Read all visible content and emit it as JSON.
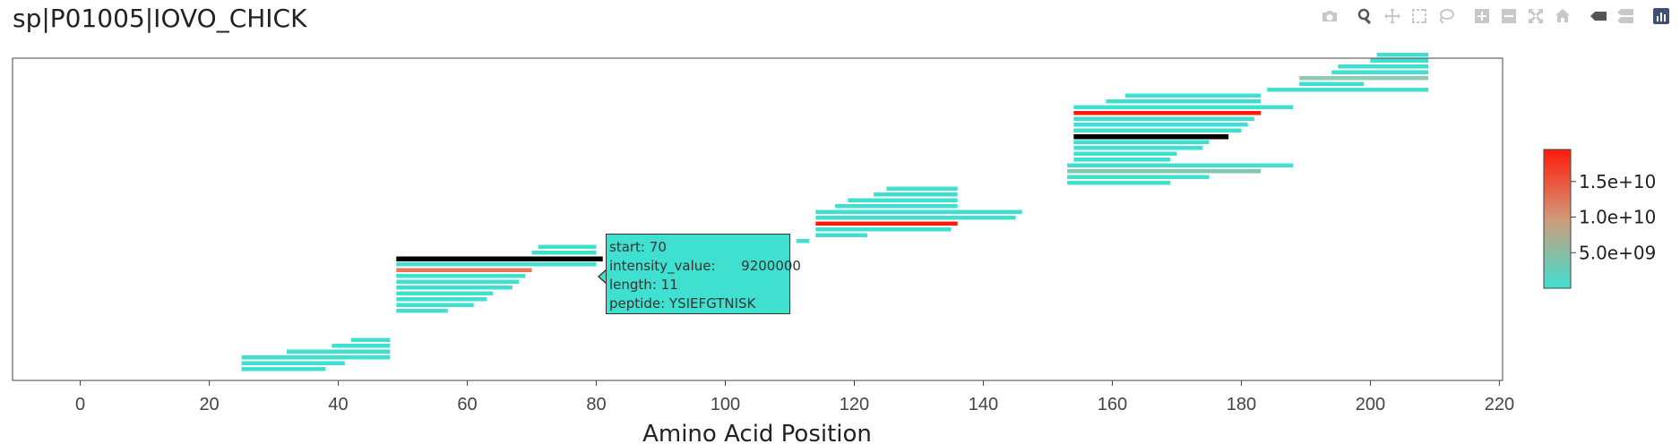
{
  "page": {
    "title": "sp|P01005|IOVO_CHICK"
  },
  "modebar": [
    {
      "name": "camera-icon"
    },
    {
      "name": "zoom-icon"
    },
    {
      "name": "pan-icon"
    },
    {
      "name": "box-select-icon"
    },
    {
      "name": "lasso-icon"
    },
    {
      "name": "zoom-in-icon"
    },
    {
      "name": "zoom-out-icon"
    },
    {
      "name": "autoscale-icon"
    },
    {
      "name": "reset-axes-icon"
    },
    {
      "name": "hover-closest-icon"
    },
    {
      "name": "hover-compare-icon"
    },
    {
      "name": "plotly-logo-icon"
    }
  ],
  "tooltip": {
    "start_label": "start:",
    "start_value": "70",
    "intensity_label": "intensity_value:",
    "intensity_value": "9200000",
    "length_label": "length:",
    "length_value": "11",
    "peptide_label": "peptide:",
    "peptide_value": "YSIEFGTNISK"
  },
  "chart_data": {
    "type": "bar",
    "orientation": "horizontal-ranges",
    "title": "sp|P01005|IOVO_CHICK",
    "xlabel": "Amino Acid Position",
    "ylabel": "",
    "xlim": [
      -10.5,
      220.5
    ],
    "xticks": [
      0,
      20,
      40,
      60,
      80,
      100,
      120,
      140,
      160,
      180,
      200,
      220
    ],
    "colorscale": {
      "colors": [
        "#40e0d0",
        "#ff1a0a"
      ],
      "ticks": [
        "5.0e+09",
        "1.0e+10",
        "1.5e+10"
      ],
      "tick_values": [
        5000000000.0,
        10000000000.0,
        15000000000.0
      ],
      "range": [
        0,
        19500000000.0
      ]
    },
    "peptides": [
      {
        "start": 25,
        "end": 38,
        "level": 0,
        "color": "#40e0d0"
      },
      {
        "start": 25,
        "end": 41,
        "level": 1,
        "color": "#40e0d0"
      },
      {
        "start": 25,
        "end": 48,
        "level": 2,
        "color": "#40e0d0"
      },
      {
        "start": 32,
        "end": 48,
        "level": 3,
        "color": "#40e0d0"
      },
      {
        "start": 39,
        "end": 48,
        "level": 4,
        "color": "#40e0d0"
      },
      {
        "start": 42,
        "end": 48,
        "level": 5,
        "color": "#40e0d0"
      },
      {
        "start": 49,
        "end": 57,
        "level": 10,
        "color": "#40e0d0"
      },
      {
        "start": 49,
        "end": 61,
        "level": 11,
        "color": "#40e0d0"
      },
      {
        "start": 49,
        "end": 63,
        "level": 12,
        "color": "#40e0d0"
      },
      {
        "start": 49,
        "end": 64,
        "level": 13,
        "color": "#40e0d0"
      },
      {
        "start": 49,
        "end": 67,
        "level": 14,
        "color": "#40e0d0"
      },
      {
        "start": 49,
        "end": 68,
        "level": 15,
        "color": "#40e0d0"
      },
      {
        "start": 49,
        "end": 69,
        "level": 16,
        "color": "#40e0d0"
      },
      {
        "start": 49,
        "end": 70,
        "level": 17,
        "color": "#e8775a"
      },
      {
        "start": 49,
        "end": 80,
        "level": 18,
        "color": "#40e0d0"
      },
      {
        "start": 49,
        "end": 81,
        "level": 19,
        "color": "#000000"
      },
      {
        "start": 70,
        "end": 80,
        "level": 20,
        "color": "#40e0d0"
      },
      {
        "start": 71,
        "end": 80,
        "level": 21,
        "color": "#40e0d0"
      },
      {
        "start": 111,
        "end": 113,
        "level": 22,
        "color": "#40e0d0"
      },
      {
        "start": 114,
        "end": 122,
        "level": 23,
        "color": "#40e0d0"
      },
      {
        "start": 114,
        "end": 135,
        "level": 24,
        "color": "#40e0d0"
      },
      {
        "start": 114,
        "end": 136,
        "level": 25,
        "color": "#ff1a0a"
      },
      {
        "start": 114,
        "end": 145,
        "level": 26,
        "color": "#40e0d0"
      },
      {
        "start": 114,
        "end": 146,
        "level": 27,
        "color": "#40e0d0"
      },
      {
        "start": 117,
        "end": 136,
        "level": 28,
        "color": "#40e0d0"
      },
      {
        "start": 119,
        "end": 136,
        "level": 29,
        "color": "#40e0d0"
      },
      {
        "start": 123,
        "end": 136,
        "level": 30,
        "color": "#40e0d0"
      },
      {
        "start": 125,
        "end": 136,
        "level": 31,
        "color": "#40e0d0"
      },
      {
        "start": 153,
        "end": 169,
        "level": 32,
        "color": "#40e0d0"
      },
      {
        "start": 153,
        "end": 175,
        "level": 33,
        "color": "#40e0d0"
      },
      {
        "start": 153,
        "end": 183,
        "level": 34,
        "color": "#7fc9b0"
      },
      {
        "start": 153,
        "end": 188,
        "level": 35,
        "color": "#40e0d0"
      },
      {
        "start": 154,
        "end": 169,
        "level": 36,
        "color": "#40e0d0"
      },
      {
        "start": 154,
        "end": 170,
        "level": 37,
        "color": "#40e0d0"
      },
      {
        "start": 154,
        "end": 174,
        "level": 38,
        "color": "#40e0d0"
      },
      {
        "start": 154,
        "end": 175,
        "level": 39,
        "color": "#40e0d0"
      },
      {
        "start": 154,
        "end": 178,
        "level": 40,
        "color": "#000000"
      },
      {
        "start": 154,
        "end": 180,
        "level": 41,
        "color": "#40e0d0"
      },
      {
        "start": 154,
        "end": 181,
        "level": 42,
        "color": "#40e0d0"
      },
      {
        "start": 154,
        "end": 182,
        "level": 43,
        "color": "#40e0d0"
      },
      {
        "start": 154,
        "end": 183,
        "level": 44,
        "color": "#ff1a0a"
      },
      {
        "start": 154,
        "end": 188,
        "level": 45,
        "color": "#40e0d0"
      },
      {
        "start": 159,
        "end": 183,
        "level": 46,
        "color": "#40e0d0"
      },
      {
        "start": 162,
        "end": 183,
        "level": 47,
        "color": "#40e0d0"
      },
      {
        "start": 184,
        "end": 209,
        "level": 48,
        "color": "#40e0d0"
      },
      {
        "start": 189,
        "end": 199,
        "level": 49,
        "color": "#40e0d0"
      },
      {
        "start": 189,
        "end": 209,
        "level": 50,
        "color": "#8fcbb4"
      },
      {
        "start": 194,
        "end": 209,
        "level": 51,
        "color": "#40e0d0"
      },
      {
        "start": 195,
        "end": 209,
        "level": 52,
        "color": "#40e0d0"
      },
      {
        "start": 200,
        "end": 209,
        "level": 53,
        "color": "#40e0d0"
      },
      {
        "start": 201,
        "end": 209,
        "level": 54,
        "color": "#40e0d0"
      }
    ]
  }
}
